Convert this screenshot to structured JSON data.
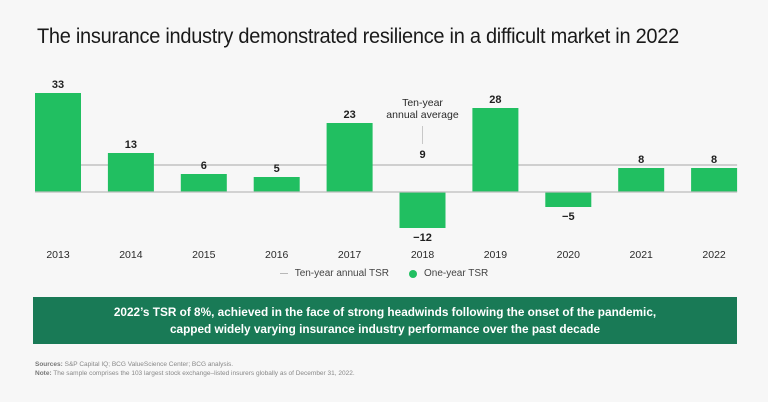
{
  "header": {
    "title": "The insurance industry demonstrated resilience in a difficult market in 2022"
  },
  "chart_data": {
    "type": "bar",
    "title": "The insurance industry demonstrated resilience in a difficult market in 2022",
    "categories": [
      "2013",
      "2014",
      "2015",
      "2016",
      "2017",
      "2018",
      "2019",
      "2020",
      "2021",
      "2022"
    ],
    "series": [
      {
        "name": "One-year TSR",
        "values": [
          33,
          13,
          6,
          5,
          23,
          -12,
          28,
          -5,
          8,
          8
        ],
        "color": "#21bf61"
      }
    ],
    "reference_line": {
      "name": "Ten-year annual TSR",
      "value": 9,
      "color": "#c2c2c2"
    },
    "annotation": {
      "lines": [
        "Ten-year",
        "annual average"
      ],
      "value_label": "9",
      "category": "2018"
    },
    "data_labels": [
      "33",
      "13",
      "6",
      "5",
      "23",
      "−12",
      "28",
      "−5",
      "8",
      "8"
    ],
    "xlabel": "",
    "ylabel": "",
    "ylim": [
      -15,
      35
    ],
    "grid": false,
    "legend_position": "bottom-center"
  },
  "legend": {
    "items": [
      {
        "label": "Ten-year annual TSR",
        "marker": "line",
        "color": "#b8b8b8"
      },
      {
        "label": "One-year TSR",
        "marker": "dot",
        "color": "#21bf61"
      }
    ]
  },
  "callout": {
    "text": "2022’s TSR of 8%, achieved in the face of strong headwinds following the onset of the pandemic, capped widely varying insurance industry performance over the past decade",
    "background": "#197a56"
  },
  "footnotes": {
    "sources_label": "Sources:",
    "sources_text": " S&P Capital IQ; BCG ValueScience Center; BCG analysis.",
    "note_label": "Note:",
    "note_text": " The sample comprises the 103 largest stock exchange–listed insurers globally as of December 31, 2022."
  }
}
